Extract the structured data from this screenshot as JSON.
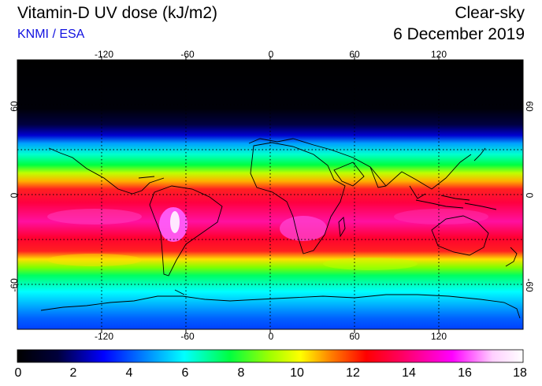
{
  "header": {
    "title": "Vitamin-D UV dose (kJ/m2)",
    "credit": "KNMI / ESA",
    "condition": "Clear-sky",
    "date": "6 December 2019"
  },
  "map": {
    "projection": "equirectangular",
    "lon_range": [
      -180,
      180
    ],
    "lat_range": [
      -90,
      90
    ],
    "gridlines": "dotted, every 30 degrees",
    "lon_ticks": [
      "-120",
      "-60",
      "0",
      "60",
      "120"
    ],
    "lat_ticks_left": [
      "60",
      "0",
      "-60"
    ],
    "lat_ticks_right": [
      "60",
      "0",
      "-60"
    ]
  },
  "colorbar": {
    "ticks": [
      "0",
      "2",
      "4",
      "6",
      "8",
      "10",
      "12",
      "14",
      "16",
      "18"
    ],
    "colors": [
      "#000000",
      "#00003c",
      "#0000ff",
      "#00a0ff",
      "#00ffff",
      "#00ff40",
      "#a0ff00",
      "#ffff00",
      "#ff8000",
      "#ff0000",
      "#ff0060",
      "#ff00ff",
      "#ffd0ff",
      "#ffffff"
    ]
  }
}
